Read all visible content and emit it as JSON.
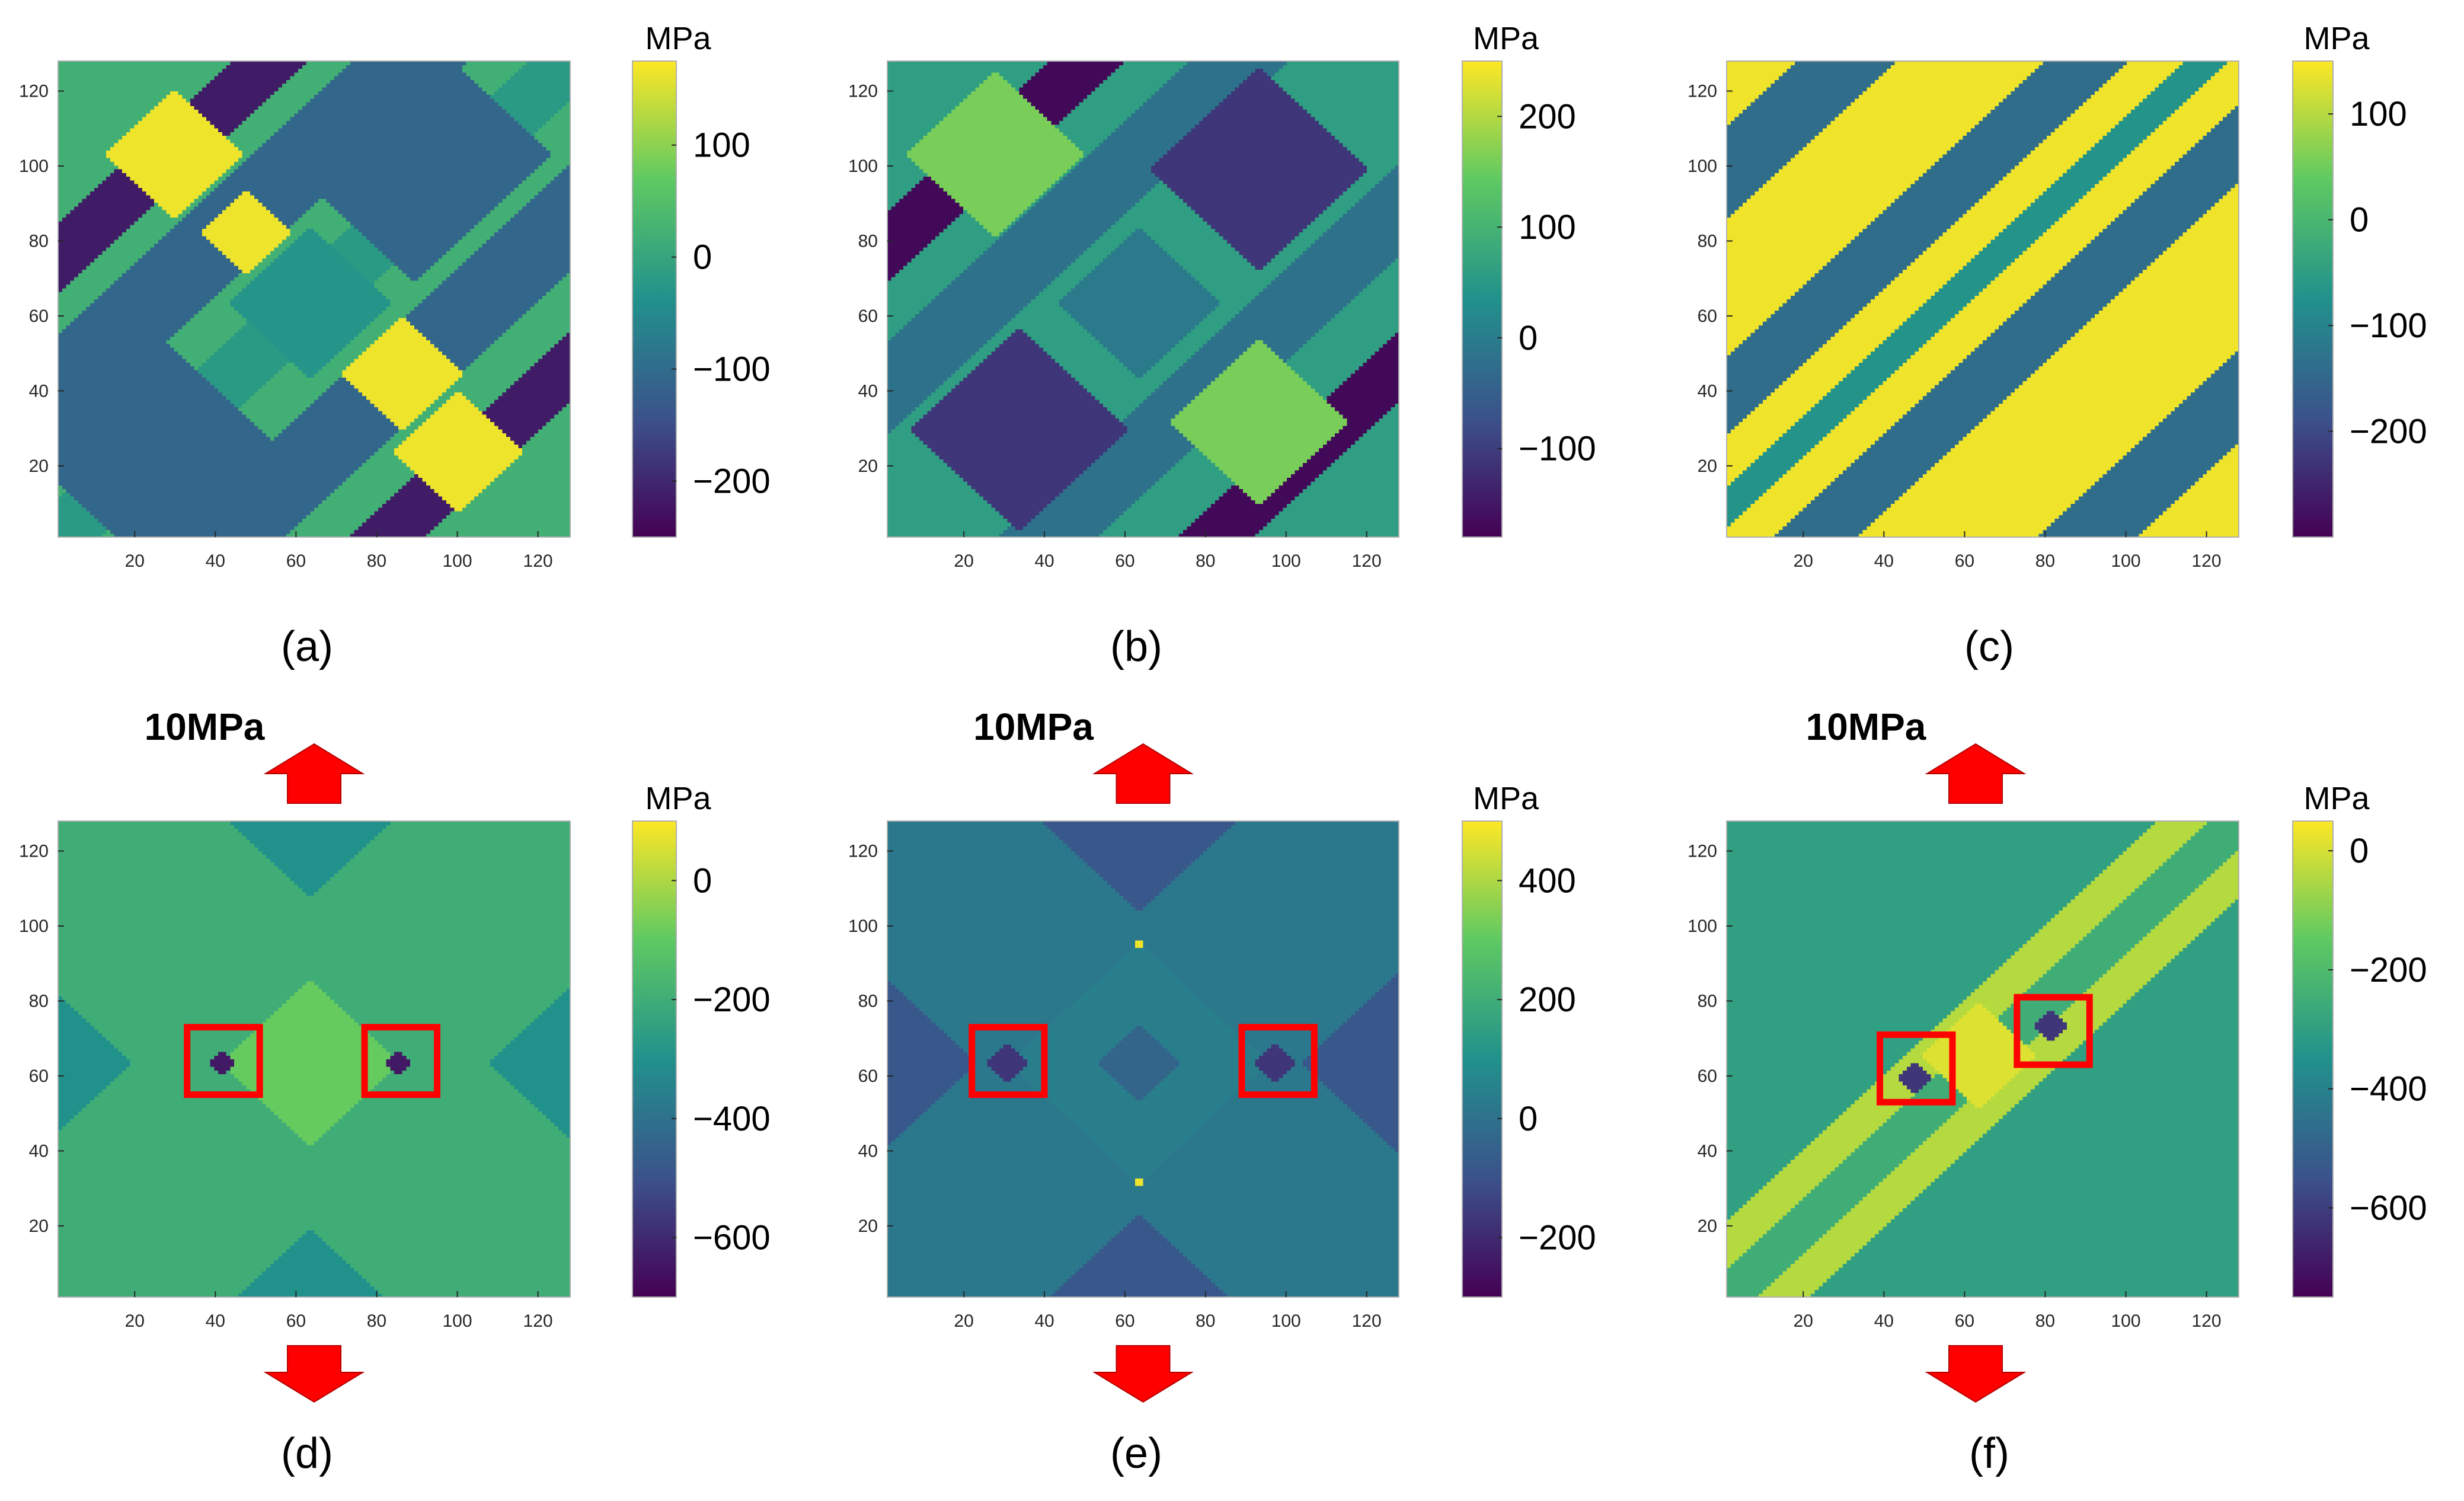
{
  "colormap": {
    "name": "viridis",
    "stops": [
      "#440154",
      "#3b528b",
      "#21918c",
      "#5ec962",
      "#fde725"
    ]
  },
  "annotation_color": "#ff0000",
  "chart_data": [
    {
      "id": "a",
      "type": "heatmap",
      "caption": "(a)",
      "grid_size": 128,
      "xlim": [
        1,
        128
      ],
      "ylim": [
        1,
        128
      ],
      "xticks": [
        20,
        40,
        60,
        80,
        100,
        120
      ],
      "yticks": [
        20,
        40,
        60,
        80,
        100,
        120
      ],
      "colorbar": {
        "unit": "MPa",
        "range": [
          -250,
          175
        ],
        "ticks": [
          100,
          0,
          -100,
          -200
        ],
        "tick_labels": [
          "100",
          "0",
          "−100",
          "−200"
        ]
      },
      "background_value": 20,
      "bands": [
        {
          "dir": "diag",
          "c": 75,
          "w": 9,
          "v": -215
        },
        {
          "dir": "diag",
          "c": 40,
          "w": 14,
          "v": -110
        },
        {
          "dir": "diag",
          "c": -42,
          "w": 14,
          "v": -110
        },
        {
          "dir": "diag",
          "c": -82,
          "w": 9,
          "v": -215
        },
        {
          "dir": "diag",
          "c": 0,
          "w": 10,
          "v": -20
        }
      ],
      "diamonds": [
        {
          "x": 30,
          "y": 104,
          "r": 17,
          "v": 165
        },
        {
          "x": 101,
          "y": 24,
          "r": 16,
          "v": 165
        },
        {
          "x": 90,
          "y": 104,
          "r": 34,
          "v": -110
        },
        {
          "x": 25,
          "y": 24,
          "r": 32,
          "v": -110
        },
        {
          "x": 64,
          "y": 64,
          "r": 20,
          "v": -30
        },
        {
          "x": 48,
          "y": 83,
          "r": 11,
          "v": 165
        },
        {
          "x": 87,
          "y": 45,
          "r": 15,
          "v": 165
        }
      ],
      "boxes": []
    },
    {
      "id": "b",
      "type": "heatmap",
      "caption": "(b)",
      "grid_size": 128,
      "xlim": [
        1,
        128
      ],
      "ylim": [
        1,
        128
      ],
      "xticks": [
        20,
        40,
        60,
        80,
        100,
        120
      ],
      "yticks": [
        20,
        40,
        60,
        80,
        100,
        120
      ],
      "colorbar": {
        "unit": "MPa",
        "range": [
          -180,
          250
        ],
        "ticks": [
          200,
          100,
          0,
          -100
        ],
        "tick_labels": [
          "200",
          "100",
          "0",
          "−100"
        ]
      },
      "background_value": 60,
      "bands": [
        {
          "dir": "diag",
          "c": 78,
          "w": 9,
          "v": -170
        },
        {
          "dir": "diag",
          "c": -82,
          "w": 9,
          "v": -170
        },
        {
          "dir": "diag",
          "c": 40,
          "w": 12,
          "v": -20
        },
        {
          "dir": "diag",
          "c": -40,
          "w": 12,
          "v": -20
        }
      ],
      "diamonds": [
        {
          "x": 94,
          "y": 100,
          "r": 27,
          "v": -110
        },
        {
          "x": 34,
          "y": 30,
          "r": 27,
          "v": -110
        },
        {
          "x": 28,
          "y": 104,
          "r": 22,
          "v": 160
        },
        {
          "x": 94,
          "y": 32,
          "r": 22,
          "v": 160
        },
        {
          "x": 64,
          "y": 64,
          "r": 20,
          "v": -5
        }
      ],
      "boxes": []
    },
    {
      "id": "c",
      "type": "heatmap",
      "caption": "(c)",
      "grid_size": 128,
      "xlim": [
        1,
        128
      ],
      "ylim": [
        1,
        128
      ],
      "xticks": [
        20,
        40,
        60,
        80,
        100,
        120
      ],
      "yticks": [
        20,
        40,
        60,
        80,
        100,
        120
      ],
      "colorbar": {
        "unit": "MPa",
        "range": [
          -300,
          150
        ],
        "ticks": [
          100,
          0,
          -100,
          -200
        ],
        "tick_labels": [
          "100",
          "0",
          "−100",
          "−200"
        ]
      },
      "background_value": 140,
      "bands": [
        {
          "dir": "diag",
          "c": 98,
          "w": 12,
          "v": -140
        },
        {
          "dir": "diag",
          "c": 38,
          "w": 10,
          "v": -140
        },
        {
          "dir": "diag",
          "c": 8,
          "w": 5,
          "v": -70
        },
        {
          "dir": "diag",
          "c": -22,
          "w": 10,
          "v": -140
        },
        {
          "dir": "diag",
          "c": -90,
          "w": 12,
          "v": -140
        }
      ],
      "diamonds": [],
      "boxes": []
    },
    {
      "id": "d",
      "type": "heatmap",
      "caption": "(d)",
      "load_label": "10MPa",
      "grid_size": 128,
      "xlim": [
        1,
        128
      ],
      "ylim": [
        1,
        128
      ],
      "xticks": [
        20,
        40,
        60,
        80,
        100,
        120
      ],
      "yticks": [
        20,
        40,
        60,
        80,
        100,
        120
      ],
      "colorbar": {
        "unit": "MPa",
        "range": [
          -700,
          100
        ],
        "ticks": [
          0,
          -200,
          -400,
          -600
        ],
        "tick_labels": [
          "0",
          "−200",
          "−400",
          "−600"
        ]
      },
      "background_value": -300,
      "bands": [
        {
          "dir": "diag",
          "c": 0,
          "w": 44,
          "v": -200
        },
        {
          "dir": "anti",
          "c": 128,
          "w": 44,
          "v": -200
        }
      ],
      "diamonds": [
        {
          "x": 64,
          "y": 64,
          "r": 22,
          "v": -90
        },
        {
          "x": 42,
          "y": 64,
          "r": 3,
          "v": -640
        },
        {
          "x": 86,
          "y": 64,
          "r": 3,
          "v": -640
        }
      ],
      "boxes": [
        {
          "x": 42,
          "y": 64,
          "half": 9
        },
        {
          "x": 86,
          "y": 64,
          "half": 9
        }
      ]
    },
    {
      "id": "e",
      "type": "heatmap",
      "caption": "(e)",
      "load_label": "10MPa",
      "grid_size": 128,
      "xlim": [
        1,
        128
      ],
      "ylim": [
        1,
        128
      ],
      "xticks": [
        20,
        40,
        60,
        80,
        100,
        120
      ],
      "yticks": [
        20,
        40,
        60,
        80,
        100,
        120
      ],
      "colorbar": {
        "unit": "MPa",
        "range": [
          -300,
          500
        ],
        "ticks": [
          400,
          200,
          0,
          -200
        ],
        "tick_labels": [
          "400",
          "200",
          "0",
          "−200"
        ]
      },
      "background_value": -80,
      "bands": [
        {
          "dir": "diag",
          "c": 0,
          "w": 40,
          "v": 20
        },
        {
          "dir": "anti",
          "c": 128,
          "w": 40,
          "v": 20
        }
      ],
      "diamonds": [
        {
          "x": 64,
          "y": 64,
          "r": 32,
          "v": 40
        },
        {
          "x": 64,
          "y": 64,
          "r": 10,
          "v": -40
        },
        {
          "x": 31,
          "y": 64,
          "r": 5,
          "v": -170
        },
        {
          "x": 98,
          "y": 64,
          "r": 5,
          "v": -170
        },
        {
          "x": 64,
          "y": 96,
          "r": 1.5,
          "v": 480
        },
        {
          "x": 64,
          "y": 32,
          "r": 1.5,
          "v": 480
        }
      ],
      "boxes": [
        {
          "x": 31,
          "y": 64,
          "half": 9
        },
        {
          "x": 98,
          "y": 64,
          "half": 9
        }
      ]
    },
    {
      "id": "f",
      "type": "heatmap",
      "caption": "(f)",
      "load_label": "10MPa",
      "grid_size": 128,
      "xlim": [
        1,
        128
      ],
      "ylim": [
        1,
        128
      ],
      "xticks": [
        20,
        40,
        60,
        80,
        100,
        120
      ],
      "yticks": [
        20,
        40,
        60,
        80,
        100,
        120
      ],
      "colorbar": {
        "unit": "MPa",
        "range": [
          -750,
          50
        ],
        "ticks": [
          0,
          -200,
          -400,
          -600
        ],
        "tick_labels": [
          "0",
          "−200",
          "−400",
          "−600"
        ]
      },
      "background_value": -300,
      "bands": [
        {
          "dir": "diag",
          "c": 0,
          "w": 20,
          "v": -40
        },
        {
          "dir": "diag",
          "c": 0,
          "w": 7,
          "v": -250
        }
      ],
      "diamonds": [
        {
          "x": 64,
          "y": 66,
          "r": 14,
          "v": 10
        },
        {
          "x": 48,
          "y": 60,
          "r": 4,
          "v": -620
        },
        {
          "x": 82,
          "y": 74,
          "r": 4,
          "v": -620
        }
      ],
      "boxes": [
        {
          "x": 48,
          "y": 62,
          "half": 9
        },
        {
          "x": 82,
          "y": 72,
          "half": 9
        }
      ]
    }
  ]
}
